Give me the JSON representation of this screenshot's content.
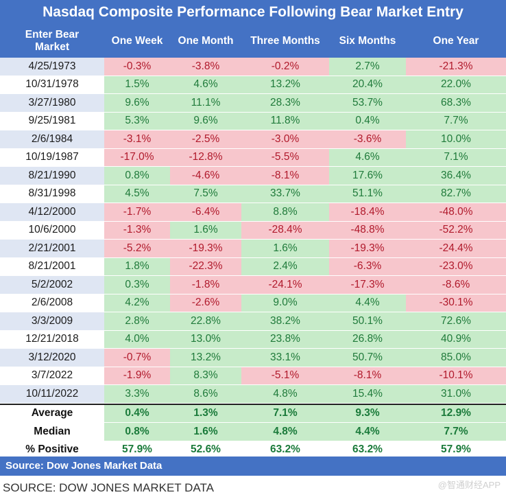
{
  "chart_data": {
    "type": "table",
    "title": "Nasdaq Composite Performance Following Bear Market Entry",
    "columns": [
      "Enter Bear Market",
      "One Week",
      "One Month",
      "Three Months",
      "Six Months",
      "One Year"
    ],
    "rows": [
      {
        "date": "4/25/1973",
        "values": [
          "-0.3%",
          "-3.8%",
          "-0.2%",
          "2.7%",
          "-21.3%"
        ]
      },
      {
        "date": "10/31/1978",
        "values": [
          "1.5%",
          "4.6%",
          "13.2%",
          "20.4%",
          "22.0%"
        ]
      },
      {
        "date": "3/27/1980",
        "values": [
          "9.6%",
          "11.1%",
          "28.3%",
          "53.7%",
          "68.3%"
        ]
      },
      {
        "date": "9/25/1981",
        "values": [
          "5.3%",
          "9.6%",
          "11.8%",
          "0.4%",
          "7.7%"
        ]
      },
      {
        "date": "2/6/1984",
        "values": [
          "-3.1%",
          "-2.5%",
          "-3.0%",
          "-3.6%",
          "10.0%"
        ]
      },
      {
        "date": "10/19/1987",
        "values": [
          "-17.0%",
          "-12.8%",
          "-5.5%",
          "4.6%",
          "7.1%"
        ]
      },
      {
        "date": "8/21/1990",
        "values": [
          "0.8%",
          "-4.6%",
          "-8.1%",
          "17.6%",
          "36.4%"
        ]
      },
      {
        "date": "8/31/1998",
        "values": [
          "4.5%",
          "7.5%",
          "33.7%",
          "51.1%",
          "82.7%"
        ]
      },
      {
        "date": "4/12/2000",
        "values": [
          "-1.7%",
          "-6.4%",
          "8.8%",
          "-18.4%",
          "-48.0%"
        ]
      },
      {
        "date": "10/6/2000",
        "values": [
          "-1.3%",
          "1.6%",
          "-28.4%",
          "-48.8%",
          "-52.2%"
        ]
      },
      {
        "date": "2/21/2001",
        "values": [
          "-5.2%",
          "-19.3%",
          "1.6%",
          "-19.3%",
          "-24.4%"
        ]
      },
      {
        "date": "8/21/2001",
        "values": [
          "1.8%",
          "-22.3%",
          "2.4%",
          "-6.3%",
          "-23.0%"
        ]
      },
      {
        "date": "5/2/2002",
        "values": [
          "0.3%",
          "-1.8%",
          "-24.1%",
          "-17.3%",
          "-8.6%"
        ]
      },
      {
        "date": "2/6/2008",
        "values": [
          "4.2%",
          "-2.6%",
          "9.0%",
          "4.4%",
          "-30.1%"
        ]
      },
      {
        "date": "3/3/2009",
        "values": [
          "2.8%",
          "22.8%",
          "38.2%",
          "50.1%",
          "72.6%"
        ]
      },
      {
        "date": "12/21/2018",
        "values": [
          "4.0%",
          "13.0%",
          "23.8%",
          "26.8%",
          "40.9%"
        ]
      },
      {
        "date": "3/12/2020",
        "values": [
          "-0.7%",
          "13.2%",
          "33.1%",
          "50.7%",
          "85.0%"
        ]
      },
      {
        "date": "3/7/2022",
        "values": [
          "-1.9%",
          "8.3%",
          "-5.1%",
          "-8.1%",
          "-10.1%"
        ]
      },
      {
        "date": "10/11/2022",
        "values": [
          "3.3%",
          "8.6%",
          "4.8%",
          "15.4%",
          "31.0%"
        ]
      }
    ],
    "summary": [
      {
        "label": "Average",
        "values": [
          "0.4%",
          "1.3%",
          "7.1%",
          "9.3%",
          "12.9%"
        ]
      },
      {
        "label": "Median",
        "values": [
          "0.8%",
          "1.6%",
          "4.8%",
          "4.4%",
          "7.7%"
        ]
      },
      {
        "label": "% Positive",
        "values": [
          "57.9%",
          "52.6%",
          "63.2%",
          "63.2%",
          "57.9%"
        ]
      }
    ],
    "source": "Source: Dow Jones Market Data"
  },
  "header": {
    "enter_line1": "Enter Bear",
    "enter_line2": "Market"
  },
  "caption": "SOURCE: DOW JONES MARKET DATA",
  "watermark": "@智通财经APP",
  "colors": {
    "header": "#4472c4",
    "positive": "#c7ebc9",
    "negative": "#f7c6cc",
    "date_band": "#dfe6f3"
  }
}
